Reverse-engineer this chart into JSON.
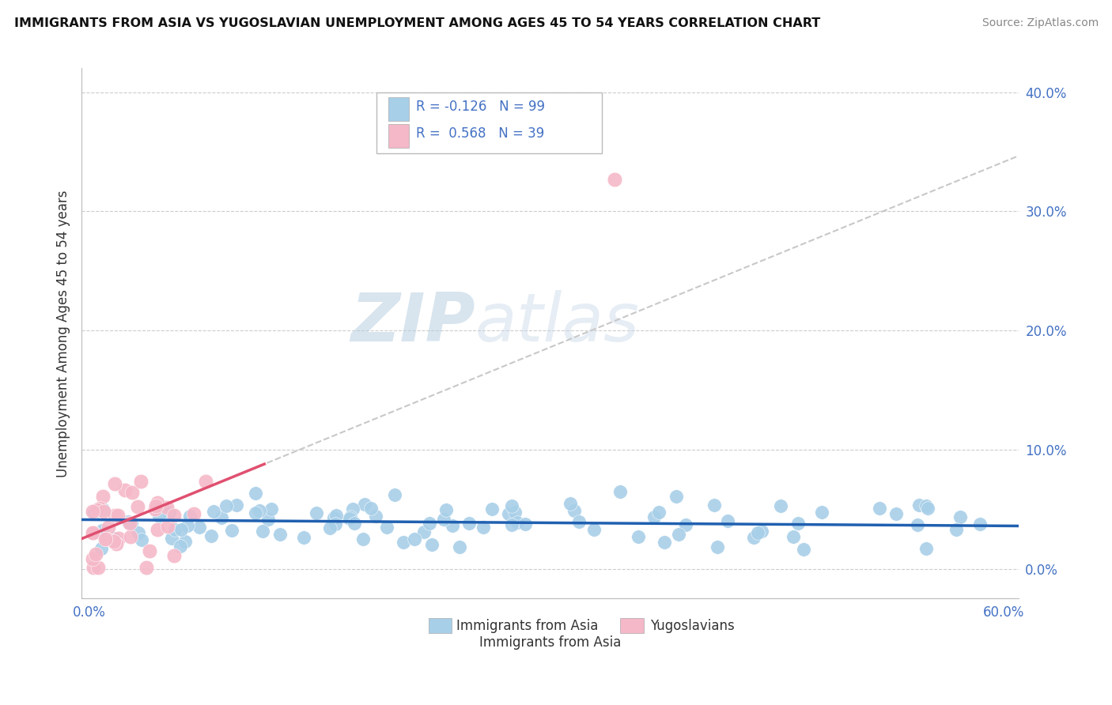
{
  "title": "IMMIGRANTS FROM ASIA VS YUGOSLAVIAN UNEMPLOYMENT AMONG AGES 45 TO 54 YEARS CORRELATION CHART",
  "source": "Source: ZipAtlas.com",
  "ylabel": "Unemployment Among Ages 45 to 54 years",
  "xlim": [
    -0.005,
    0.61
  ],
  "ylim": [
    -0.025,
    0.42
  ],
  "yticks": [
    0.0,
    0.1,
    0.2,
    0.3,
    0.4
  ],
  "ytick_labels": [
    "0.0%",
    "10.0%",
    "20.0%",
    "30.0%",
    "40.0%"
  ],
  "xticks": [
    0.0,
    0.1,
    0.2,
    0.3,
    0.4,
    0.5,
    0.6
  ],
  "xtick_labels": [
    "0.0%",
    "",
    "",
    "",
    "",
    "",
    "60.0%"
  ],
  "background_color": "#ffffff",
  "grid_color": "#cccccc",
  "blue_color": "#a8cfe8",
  "pink_color": "#f5b8c8",
  "blue_line_color": "#2060b0",
  "pink_line_color": "#e05070",
  "gray_dash_color": "#c8c8c8",
  "tick_color": "#4472c4",
  "legend_text_color": "#4472c4",
  "watermark_text": "ZIPatlas",
  "watermark_color": "#d8e8f8",
  "bottom_legend_label1": "Immigrants from Asia",
  "bottom_legend_label2": "Yugoslavians"
}
